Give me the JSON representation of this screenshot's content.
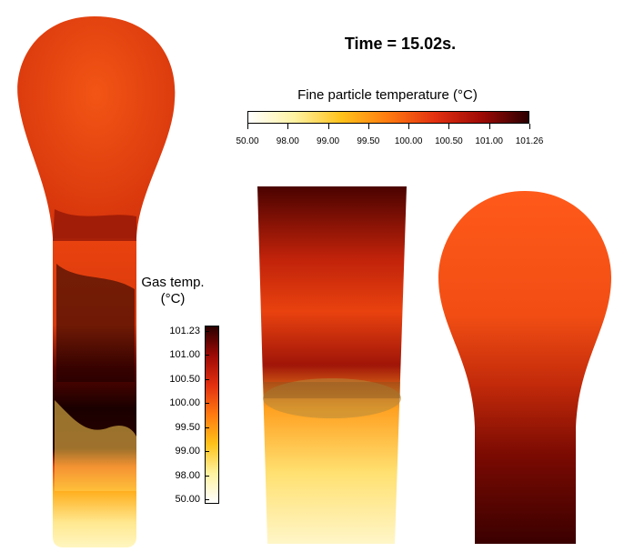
{
  "title": "Time = 15.02s.",
  "fine_colorbar": {
    "label": "Fine particle temperature (°C)",
    "ticks": [
      "50.00",
      "98.00",
      "99.00",
      "99.50",
      "100.00",
      "100.50",
      "101.00",
      "101.26"
    ],
    "colors": [
      "#ffffff",
      "#fff2a0",
      "#ffc21a",
      "#ff7a10",
      "#e23010",
      "#9e0a05",
      "#2a0000"
    ]
  },
  "gas_colorbar": {
    "label_line1": "Gas temp.",
    "label_line2": "(°C)",
    "ticks": [
      "101.23",
      "101.00",
      "100.50",
      "100.00",
      "99.50",
      "99.00",
      "98.00",
      "50.00"
    ],
    "colors": [
      "#2a0000",
      "#9e0a05",
      "#e23010",
      "#ff7a10",
      "#ffc21a",
      "#fff2a0",
      "#ffffff"
    ]
  }
}
